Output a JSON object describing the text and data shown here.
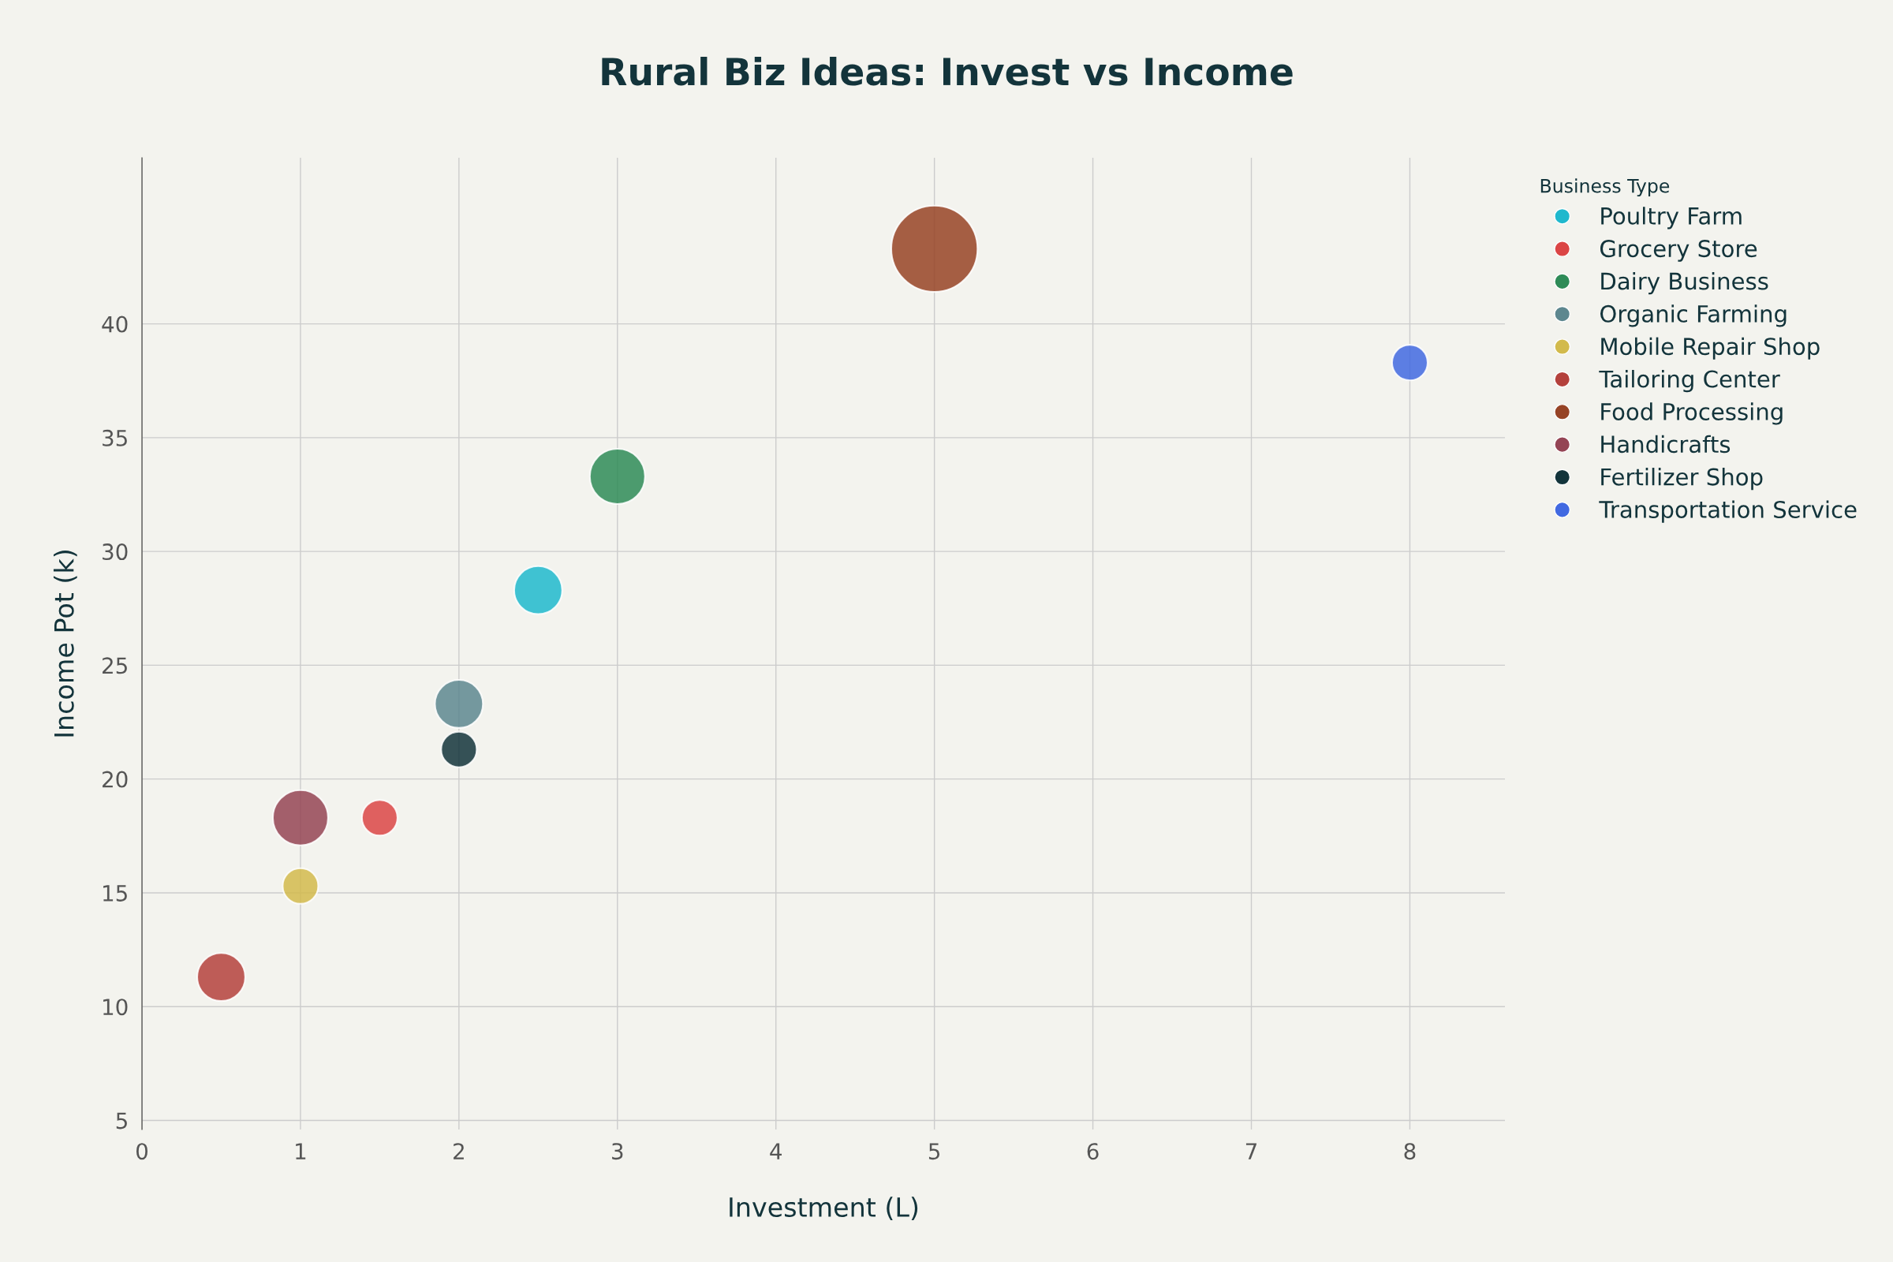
{
  "chart_data": {
    "type": "bubble",
    "title": "Rural Biz Ideas: Invest vs Income",
    "xlabel": "Investment (L)",
    "ylabel": "Income Pot (k)",
    "legend_title": "Business Type",
    "series": [
      {
        "name": "Poultry Farm",
        "color": "#1fb8cd",
        "x": [
          2.5
        ],
        "values": [
          28.3
        ],
        "sizes": [
          0.31
        ]
      },
      {
        "name": "Grocery Store",
        "color": "#db4545",
        "x": [
          1.5
        ],
        "values": [
          18.3
        ],
        "sizes": [
          0.17
        ]
      },
      {
        "name": "Dairy Business",
        "color": "#2e8b57",
        "x": [
          3
        ],
        "values": [
          33.3
        ],
        "sizes": [
          0.41
        ]
      },
      {
        "name": "Organic Farming",
        "color": "#5d878f",
        "x": [
          2
        ],
        "values": [
          23.3
        ],
        "sizes": [
          0.31
        ]
      },
      {
        "name": "Mobile Repair Shop",
        "color": "#d2ba4c",
        "x": [
          1
        ],
        "values": [
          15.3
        ],
        "sizes": [
          0.17
        ]
      },
      {
        "name": "Tailoring Center",
        "color": "#b4413c",
        "x": [
          0.5
        ],
        "values": [
          11.3
        ],
        "sizes": [
          0.31
        ]
      },
      {
        "name": "Food Processing",
        "color": "#964325",
        "x": [
          5
        ],
        "values": [
          43.3
        ],
        "sizes": [
          1
        ]
      },
      {
        "name": "Handicrafts",
        "color": "#944454",
        "x": [
          1
        ],
        "values": [
          18.3
        ],
        "sizes": [
          0.41
        ]
      },
      {
        "name": "Fertilizer Shop",
        "color": "#13343b",
        "x": [
          2
        ],
        "values": [
          21.3
        ],
        "sizes": [
          0.17
        ]
      },
      {
        "name": "Transportation Service",
        "color": "#4169e1",
        "x": [
          8
        ],
        "values": [
          38.3
        ],
        "sizes": [
          0.17
        ]
      }
    ],
    "xlim": [
      0,
      8.6
    ],
    "ylim": [
      4.6,
      47.3
    ],
    "xticks": [
      0,
      1,
      2,
      3,
      4,
      5,
      6,
      7,
      8
    ],
    "yticks": [
      5,
      10,
      15,
      20,
      25,
      30,
      35,
      40
    ],
    "grid": true,
    "legend": "top right",
    "relative": false
  }
}
